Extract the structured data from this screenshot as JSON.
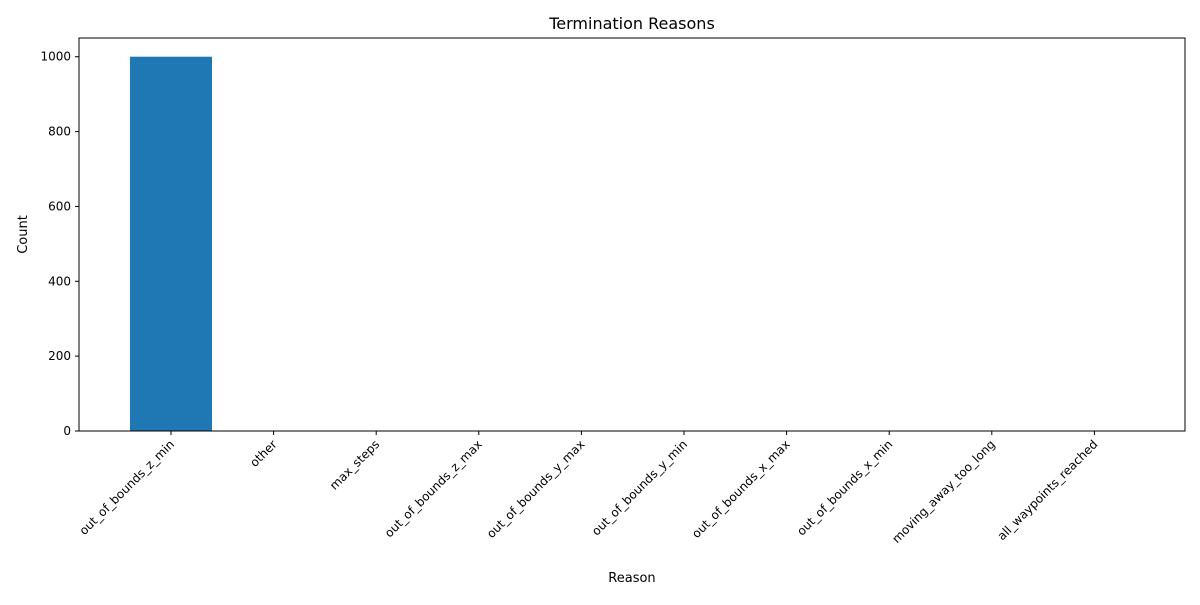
{
  "chart_data": {
    "type": "bar",
    "title": "Termination Reasons",
    "xlabel": "Reason",
    "ylabel": "Count",
    "categories": [
      "out_of_bounds_z_min",
      "other",
      "max_steps",
      "out_of_bounds_z_max",
      "out_of_bounds_y_max",
      "out_of_bounds_y_min",
      "out_of_bounds_x_max",
      "out_of_bounds_x_min",
      "moving_away_too_long",
      "all_waypoints_reached"
    ],
    "values": [
      1000,
      0,
      0,
      0,
      0,
      0,
      0,
      0,
      0,
      0
    ],
    "ylim": [
      0,
      1050
    ],
    "yticks": [
      0,
      200,
      400,
      600,
      800,
      1000
    ],
    "bar_color": "#1f77b4",
    "grid": false,
    "legend": "none"
  }
}
